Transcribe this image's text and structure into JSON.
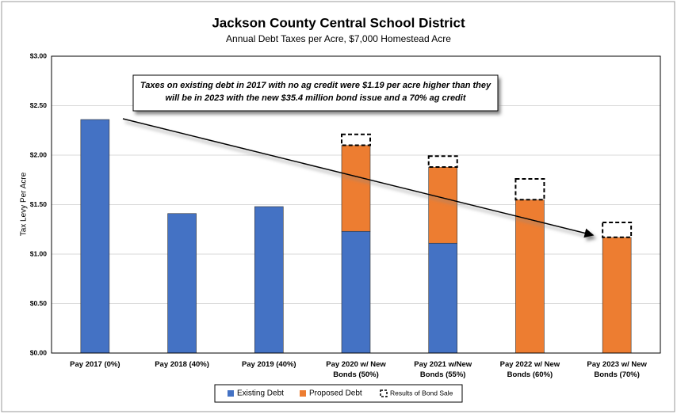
{
  "chart_data": {
    "type": "stacked_bar",
    "title": "Jackson County Central School District",
    "subtitle": "Annual Debt Taxes per Acre, $7,000 Homestead Acre",
    "y_label": "Tax Levy Per Acre",
    "annotation": [
      "Taxes on existing debt in 2017 with no ag credit were $1.19 per acre higher than they",
      "will be in 2023 with the new $35.4 million bond issue and a 70% ag credit"
    ],
    "categories": [
      "Pay 2017 (0%)",
      "Pay 2018 (40%)",
      "Pay 2019 (40%)",
      "Pay 2020 w/ New Bonds (50%)",
      "Pay 2021 w/New Bonds (55%)",
      "Pay 2022 w/ New Bonds (60%)",
      "Pay 2023 w/ New Bonds (70%)"
    ],
    "series": [
      {
        "name": "Existing Debt",
        "color": "#4472c4",
        "values": [
          2.36,
          1.41,
          1.48,
          1.23,
          1.11,
          0,
          0
        ]
      },
      {
        "name": "Proposed Debt",
        "color": "#ed7d31",
        "values": [
          0,
          0,
          0,
          0.87,
          0.77,
          1.55,
          1.17
        ]
      },
      {
        "name": "Results of Bond Sale",
        "color": "#ffffff",
        "line_style": "dashed",
        "values": [
          0,
          0,
          0,
          0.11,
          0.11,
          0.21,
          0.15
        ]
      }
    ],
    "ylim": [
      0,
      3
    ],
    "yticks": [
      {
        "value": 0,
        "label": "$0.00"
      },
      {
        "value": 0.5,
        "label": "$0.50"
      },
      {
        "value": 1,
        "label": "$1.00"
      },
      {
        "value": 1.5,
        "label": "$1.50"
      },
      {
        "value": 2,
        "label": "$2.00"
      },
      {
        "value": 2.5,
        "label": "$2.50"
      },
      {
        "value": 3,
        "label": "$3.00"
      }
    ],
    "grid": true
  }
}
